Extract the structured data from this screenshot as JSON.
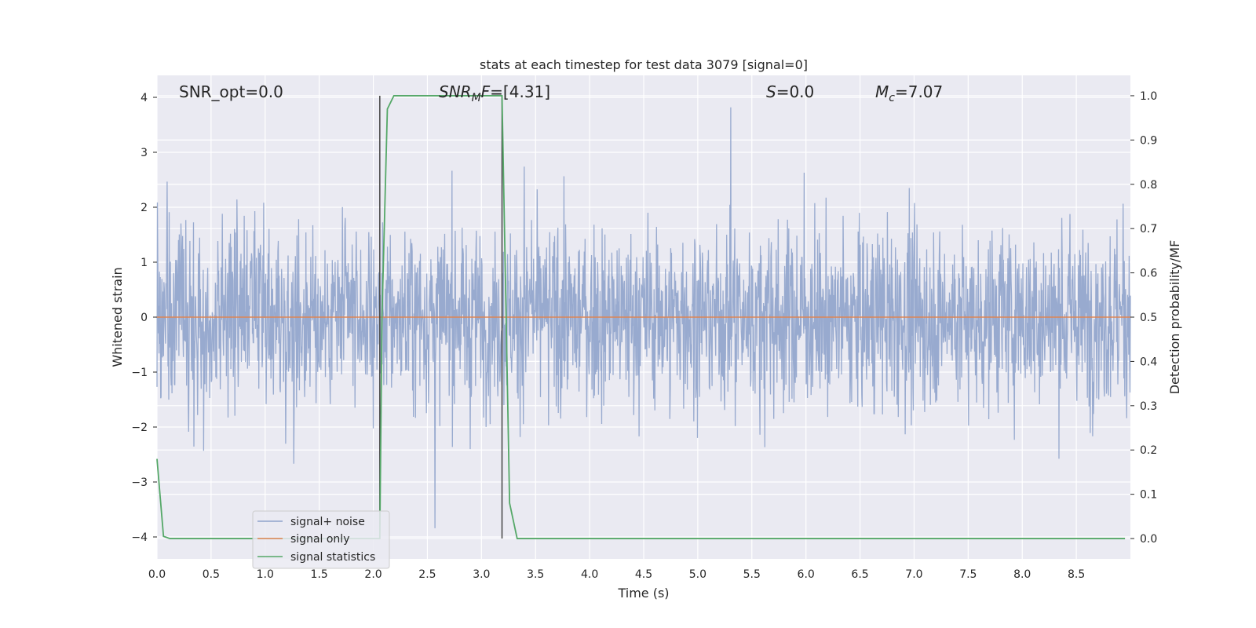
{
  "chart_data": {
    "type": "line",
    "title": "stats at each timestep for test data 3079 [signal=0]",
    "xlabel": "Time (s)",
    "ylabel": "Whitened strain",
    "y2label": "Detection probability/MF",
    "xlim": [
      0.0,
      9.0
    ],
    "ylim": [
      -4.4,
      4.4
    ],
    "y2lim": [
      -0.046,
      1.046
    ],
    "x_ticks": [
      "0.0",
      "0.5",
      "1.0",
      "1.5",
      "2.0",
      "2.5",
      "3.0",
      "3.5",
      "4.0",
      "4.5",
      "5.0",
      "5.5",
      "6.0",
      "6.5",
      "7.0",
      "7.5",
      "8.0",
      "8.5"
    ],
    "y_ticks": [
      "−4",
      "−3",
      "−2",
      "−1",
      "0",
      "1",
      "2",
      "3",
      "4"
    ],
    "y2_ticks": [
      "0.0",
      "0.1",
      "0.2",
      "0.3",
      "0.4",
      "0.5",
      "0.6",
      "0.7",
      "0.8",
      "0.9",
      "1.0"
    ],
    "grid": true,
    "legend_position": "bottom-left",
    "annotations": {
      "snr_opt": "SNR_opt=0.0",
      "snr_mf_main": "SNR",
      "snr_mf_sub": "M",
      "snr_mf_tail": "F",
      "snr_mf_value": "=[4.31]",
      "s_symbol": "S",
      "s_value": "=0.0",
      "mc_symbol": "M",
      "mc_sub": "c",
      "mc_value": "=7.07"
    },
    "vertical_markers": [
      2.06,
      3.19
    ],
    "series": [
      {
        "name": "signal+ noise",
        "color": "#8fa3cb",
        "description_values": "whitened noise, typical amplitude ±1.5, extremes ±4"
      },
      {
        "name": "signal only",
        "color": "#dd8452",
        "x": [
          0.0,
          9.0
        ],
        "y": [
          0.0,
          0.0
        ]
      },
      {
        "name": "signal statistics",
        "color": "#55a868",
        "x": [
          0.0,
          0.06,
          0.12,
          2.02,
          2.06,
          2.08,
          2.13,
          2.19,
          3.0,
          3.19,
          3.26,
          3.33,
          8.95
        ],
        "y": [
          0.18,
          0.005,
          0.0,
          0.0,
          0.0,
          0.5,
          0.97,
          1.0,
          1.0,
          1.0,
          0.08,
          0.0,
          0.0
        ]
      }
    ]
  }
}
